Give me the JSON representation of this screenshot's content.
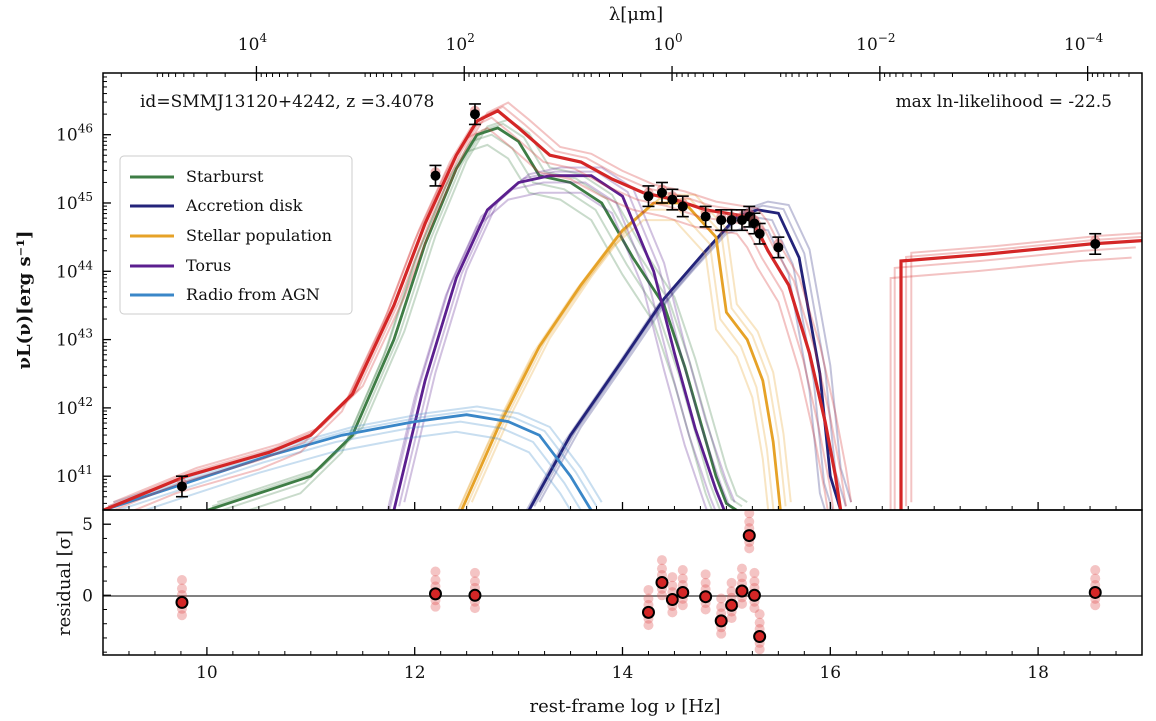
{
  "chart_data": {
    "type": "line",
    "title": "",
    "panels": [
      {
        "name": "sed",
        "ylabel": "νL(ν)[erg s⁻¹]",
        "yscale": "log",
        "ylim": [
          3.2e+40,
          8e+46
        ],
        "top_xlabel": "λ[μm]",
        "top_xscale": "log",
        "top_xticks": [
          {
            "label": "10",
            "exp": "4"
          },
          {
            "label": "10",
            "exp": "2"
          },
          {
            "label": "10",
            "exp": "0"
          },
          {
            "label": "10",
            "exp": "−2"
          },
          {
            "label": "10",
            "exp": "−4"
          }
        ],
        "yticks": [
          {
            "label": "10",
            "exp": "41"
          },
          {
            "label": "10",
            "exp": "42"
          },
          {
            "label": "10",
            "exp": "43"
          },
          {
            "label": "10",
            "exp": "44"
          },
          {
            "label": "10",
            "exp": "45"
          },
          {
            "label": "10",
            "exp": "46"
          }
        ],
        "annotations": [
          {
            "text": "id=SMMJ13120+4242, z =3.4078",
            "position": "top-left"
          },
          {
            "text": "max ln-likelihood = -22.5",
            "position": "top-right"
          }
        ],
        "legend": {
          "placement": "upper-left",
          "entries": [
            {
              "name": "Starburst",
              "color": "#3e7d45"
            },
            {
              "name": "Accretion disk",
              "color": "#23237a"
            },
            {
              "name": "Stellar population",
              "color": "#e6a227"
            },
            {
              "name": "Torus",
              "color": "#5b1f8f"
            },
            {
              "name": "Radio from AGN",
              "color": "#3a87c8"
            }
          ]
        },
        "total_color": "#d42626",
        "series": [
          {
            "name": "Starburst",
            "color": "#3e7d45",
            "x": [
              10.0,
              10.6,
              11.0,
              11.4,
              11.8,
              12.1,
              12.4,
              12.6,
              12.8,
              13.0,
              13.2,
              13.5,
              13.8,
              14.1,
              14.4,
              14.6,
              14.75,
              14.9,
              15.0,
              15.1
            ],
            "y": [
              40.5,
              40.8,
              41.0,
              41.6,
              43.0,
              44.4,
              45.5,
              46.0,
              46.1,
              45.9,
              45.4,
              45.3,
              45.0,
              44.2,
              43.5,
              42.6,
              41.8,
              41.0,
              40.6,
              40.5
            ]
          },
          {
            "name": "Accretion disk",
            "color": "#23237a",
            "x": [
              13.1,
              13.5,
              14.0,
              14.4,
              14.8,
              15.1,
              15.3,
              15.5,
              15.7,
              15.9,
              16.0,
              16.1
            ],
            "y": [
              40.5,
              41.6,
              42.7,
              43.6,
              44.3,
              44.8,
              44.9,
              44.85,
              44.2,
              42.5,
              41.0,
              40.5
            ]
          },
          {
            "name": "Stellar population",
            "color": "#e6a227",
            "x": [
              12.45,
              12.8,
              13.2,
              13.6,
              14.0,
              14.3,
              14.6,
              14.9,
              15.0,
              15.2,
              15.35,
              15.45,
              15.52
            ],
            "y": [
              40.5,
              41.7,
              42.9,
              43.8,
              44.6,
              45.0,
              45.0,
              44.5,
              43.4,
              43.0,
              42.4,
              41.5,
              40.5
            ]
          },
          {
            "name": "Torus",
            "color": "#5b1f8f",
            "x": [
              11.8,
              12.1,
              12.4,
              12.7,
              13.0,
              13.3,
              13.7,
              14.0,
              14.3,
              14.5,
              14.7,
              14.9,
              14.98
            ],
            "y": [
              40.5,
              42.4,
              43.9,
              44.9,
              45.3,
              45.4,
              45.4,
              45.1,
              44.0,
              42.8,
              41.7,
              40.8,
              40.5
            ]
          },
          {
            "name": "Radio from AGN",
            "color": "#3a87c8",
            "x": [
              9.0,
              9.8,
              10.6,
              11.3,
              12.0,
              12.5,
              12.9,
              13.2,
              13.5,
              13.7
            ],
            "y": [
              40.5,
              40.9,
              41.3,
              41.6,
              41.8,
              41.9,
              41.8,
              41.6,
              41.0,
              40.5
            ]
          },
          {
            "name": "Total",
            "color": "#d42626",
            "x": [
              9.0,
              9.8,
              10.6,
              11.0,
              11.4,
              11.8,
              12.1,
              12.4,
              12.6,
              12.8,
              13.0,
              13.3,
              13.6,
              13.9,
              14.2,
              14.5,
              14.8,
              15.0,
              15.2,
              15.3,
              15.4,
              15.6,
              15.8,
              15.95,
              16.05,
              16.1
            ],
            "y": [
              40.5,
              41.0,
              41.35,
              41.6,
              42.2,
              43.5,
              44.7,
              45.7,
              46.2,
              46.35,
              46.1,
              45.7,
              45.6,
              45.35,
              45.15,
              45.05,
              44.9,
              44.85,
              44.8,
              44.6,
              44.3,
              43.8,
              42.8,
              41.8,
              41.0,
              40.5
            ]
          },
          {
            "name": "Total X-ray",
            "color": "#d42626",
            "x": [
              16.68,
              16.68,
              17.5,
              18.5,
              19.0
            ],
            "y": [
              40.5,
              44.15,
              44.25,
              44.4,
              44.45
            ]
          }
        ],
        "data_points": [
          {
            "x": 9.76,
            "y": 40.85
          },
          {
            "x": 12.2,
            "y": 45.4
          },
          {
            "x": 12.58,
            "y": 46.3
          },
          {
            "x": 14.25,
            "y": 45.1
          },
          {
            "x": 14.38,
            "y": 45.15
          },
          {
            "x": 14.48,
            "y": 45.05
          },
          {
            "x": 14.58,
            "y": 44.95
          },
          {
            "x": 14.8,
            "y": 44.8
          },
          {
            "x": 14.95,
            "y": 44.75
          },
          {
            "x": 15.05,
            "y": 44.75
          },
          {
            "x": 15.15,
            "y": 44.75
          },
          {
            "x": 15.22,
            "y": 44.8
          },
          {
            "x": 15.27,
            "y": 44.7
          },
          {
            "x": 15.32,
            "y": 44.55
          },
          {
            "x": 15.5,
            "y": 44.35
          },
          {
            "x": 18.55,
            "y": 44.4
          }
        ]
      },
      {
        "name": "residual",
        "ylabel": "residual [σ]",
        "ylim": [
          -4.2,
          6.0
        ],
        "yticks": [
          "5",
          "0"
        ],
        "xlabel": "rest-frame log  ν [Hz]",
        "xlim": [
          9.0,
          19.0
        ],
        "xticks": [
          "10",
          "12",
          "14",
          "16",
          "18"
        ],
        "zero_line": true,
        "points": [
          {
            "x": 9.76,
            "y": -0.5
          },
          {
            "x": 12.2,
            "y": 0.1
          },
          {
            "x": 12.58,
            "y": 0.0
          },
          {
            "x": 14.25,
            "y": -1.2
          },
          {
            "x": 14.38,
            "y": 0.9
          },
          {
            "x": 14.48,
            "y": -0.3
          },
          {
            "x": 14.58,
            "y": 0.2
          },
          {
            "x": 14.8,
            "y": -0.1
          },
          {
            "x": 14.95,
            "y": -1.8
          },
          {
            "x": 15.05,
            "y": -0.7
          },
          {
            "x": 15.15,
            "y": 0.3
          },
          {
            "x": 15.22,
            "y": 4.2
          },
          {
            "x": 15.27,
            "y": 0.0
          },
          {
            "x": 15.32,
            "y": -2.9
          },
          {
            "x": 18.55,
            "y": 0.2
          }
        ]
      }
    ]
  }
}
